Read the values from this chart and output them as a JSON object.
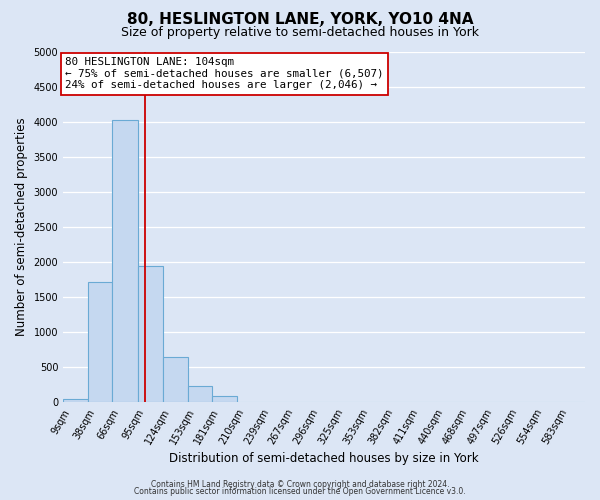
{
  "title": "80, HESLINGTON LANE, YORK, YO10 4NA",
  "subtitle": "Size of property relative to semi-detached houses in York",
  "xlabel": "Distribution of semi-detached houses by size in York",
  "ylabel": "Number of semi-detached properties",
  "bin_labels": [
    "9sqm",
    "38sqm",
    "66sqm",
    "95sqm",
    "124sqm",
    "153sqm",
    "181sqm",
    "210sqm",
    "239sqm",
    "267sqm",
    "296sqm",
    "325sqm",
    "353sqm",
    "382sqm",
    "411sqm",
    "440sqm",
    "468sqm",
    "497sqm",
    "526sqm",
    "554sqm",
    "583sqm"
  ],
  "bin_edges": [
    9,
    38,
    66,
    95,
    124,
    153,
    181,
    210,
    239,
    267,
    296,
    325,
    353,
    382,
    411,
    440,
    468,
    497,
    526,
    554,
    583,
    612
  ],
  "bar_heights": [
    50,
    1720,
    4020,
    1950,
    650,
    230,
    90,
    0,
    0,
    0,
    0,
    0,
    0,
    0,
    0,
    0,
    0,
    0,
    0,
    0,
    0
  ],
  "bar_color": "#c5d8f0",
  "bar_edgecolor": "#6aaad4",
  "property_value": 104,
  "red_line_x": 104,
  "vline_color": "#cc0000",
  "annotation_title": "80 HESLINGTON LANE: 104sqm",
  "annotation_line1": "← 75% of semi-detached houses are smaller (6,507)",
  "annotation_line2": "24% of semi-detached houses are larger (2,046) →",
  "annotation_box_facecolor": "#ffffff",
  "annotation_box_edgecolor": "#cc0000",
  "ylim": [
    0,
    5000
  ],
  "yticks": [
    0,
    500,
    1000,
    1500,
    2000,
    2500,
    3000,
    3500,
    4000,
    4500,
    5000
  ],
  "background_color": "#dce6f5",
  "grid_color": "#ffffff",
  "footer1": "Contains HM Land Registry data © Crown copyright and database right 2024.",
  "footer2": "Contains public sector information licensed under the Open Government Licence v3.0.",
  "title_fontsize": 11,
  "subtitle_fontsize": 9,
  "axis_label_fontsize": 8.5,
  "tick_fontsize": 7,
  "footer_fontsize": 5.5
}
